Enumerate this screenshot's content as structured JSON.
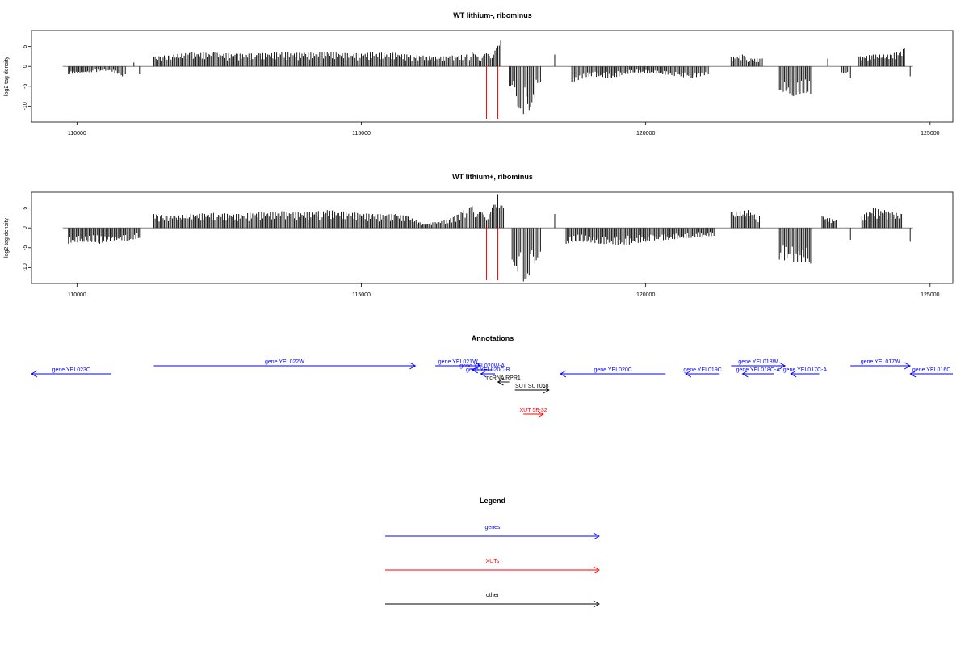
{
  "colors": {
    "genes": "#0000ff",
    "xuts": "#ff0000",
    "other": "#000000",
    "baseline": "#808080"
  },
  "chart_data": [
    {
      "type": "bar",
      "title": "WT lithium-, ribominus",
      "ylabel": "log2 tag density",
      "xlim": [
        109200,
        125400
      ],
      "ylim": [
        -14,
        9
      ],
      "x_ticks": [
        110000,
        115000,
        120000,
        125000
      ],
      "x_tick_labels": [
        "110000",
        "115000",
        "120000",
        "125000"
      ],
      "y_ticks": [
        5,
        0,
        -5,
        -10
      ],
      "y_tick_labels": [
        "5",
        "0",
        "-5",
        "-10"
      ],
      "series": [
        {
          "values": [
            [
              109850,
              -2
            ],
            [
              110300,
              -1.5
            ],
            [
              110550,
              -1
            ],
            [
              110800,
              -2.5
            ],
            [
              110850,
              -2
            ],
            [
              111000,
              1
            ],
            [
              111100,
              -2
            ],
            [
              111350,
              2.5
            ],
            [
              111700,
              3
            ],
            [
              112000,
              3.5
            ],
            [
              112400,
              3.5
            ],
            [
              112800,
              3.2
            ],
            [
              113200,
              3.3
            ],
            [
              113600,
              3.6
            ],
            [
              114000,
              3.4
            ],
            [
              114400,
              3.7
            ],
            [
              114800,
              3.3
            ],
            [
              115200,
              3.5
            ],
            [
              115600,
              3.4
            ],
            [
              115800,
              3
            ],
            [
              116350,
              2.5
            ],
            [
              116850,
              3
            ],
            [
              116950,
              3.5
            ],
            [
              117050,
              2.5
            ],
            [
              117200,
              3.3
            ],
            [
              117350,
              4
            ],
            [
              117450,
              6.5
            ],
            [
              117600,
              -5
            ],
            [
              117750,
              -10
            ],
            [
              117850,
              -12
            ],
            [
              117950,
              -11
            ],
            [
              118050,
              -8
            ],
            [
              118150,
              -4
            ],
            [
              118400,
              3
            ],
            [
              118700,
              -4
            ],
            [
              119000,
              -2.5
            ],
            [
              119400,
              -3
            ],
            [
              119800,
              -1.5
            ],
            [
              120300,
              -2
            ],
            [
              120800,
              -3
            ],
            [
              121100,
              -2
            ],
            [
              121500,
              2.5
            ],
            [
              121700,
              3
            ],
            [
              121850,
              2
            ],
            [
              122050,
              2
            ],
            [
              122350,
              -6
            ],
            [
              122600,
              -7.5
            ],
            [
              122900,
              -7
            ],
            [
              123200,
              2
            ],
            [
              123450,
              -1.5
            ],
            [
              123600,
              -3
            ],
            [
              123750,
              2.5
            ],
            [
              124000,
              3
            ],
            [
              124300,
              3
            ],
            [
              124550,
              4.5
            ],
            [
              124650,
              -2.5
            ]
          ]
        }
      ],
      "vlines": [
        117200,
        117400
      ]
    },
    {
      "type": "bar",
      "title": "WT lithium+, ribominus",
      "ylabel": "log2 tag density",
      "xlim": [
        109200,
        125400
      ],
      "ylim": [
        -14,
        9
      ],
      "x_ticks": [
        110000,
        115000,
        120000,
        125000
      ],
      "x_tick_labels": [
        "110000",
        "115000",
        "120000",
        "125000"
      ],
      "y_ticks": [
        5,
        0,
        -5,
        -10
      ],
      "y_tick_labels": [
        "5",
        "0",
        "-5",
        "-10"
      ],
      "series": [
        {
          "values": [
            [
              109850,
              -4
            ],
            [
              110100,
              -3.5
            ],
            [
              110400,
              -4
            ],
            [
              110700,
              -3
            ],
            [
              110900,
              -3.5
            ],
            [
              111100,
              -2.5
            ],
            [
              111350,
              3.5
            ],
            [
              111700,
              3
            ],
            [
              112000,
              3.5
            ],
            [
              112400,
              3.8
            ],
            [
              112800,
              3.5
            ],
            [
              113200,
              4
            ],
            [
              113600,
              4.2
            ],
            [
              114000,
              4
            ],
            [
              114400,
              4.5
            ],
            [
              114800,
              4
            ],
            [
              115200,
              3.5
            ],
            [
              115600,
              3.5
            ],
            [
              115800,
              3
            ],
            [
              116100,
              1
            ],
            [
              116500,
              2
            ],
            [
              116800,
              4.5
            ],
            [
              116950,
              5.5
            ],
            [
              117100,
              4
            ],
            [
              117250,
              3.5
            ],
            [
              117400,
              8.5
            ],
            [
              117500,
              5
            ],
            [
              117650,
              -8
            ],
            [
              117750,
              -11
            ],
            [
              117850,
              -13.5
            ],
            [
              117950,
              -12
            ],
            [
              118050,
              -9
            ],
            [
              118150,
              -6
            ],
            [
              118400,
              3.5
            ],
            [
              118600,
              -4
            ],
            [
              118900,
              -3.5
            ],
            [
              119200,
              -4
            ],
            [
              119600,
              -4.5
            ],
            [
              120000,
              -3.5
            ],
            [
              120400,
              -3
            ],
            [
              120800,
              -2.5
            ],
            [
              121200,
              -2
            ],
            [
              121500,
              4
            ],
            [
              121800,
              4.5
            ],
            [
              122000,
              3
            ],
            [
              122350,
              -8
            ],
            [
              122600,
              -8.5
            ],
            [
              122900,
              -9
            ],
            [
              123100,
              3
            ],
            [
              123350,
              2
            ],
            [
              123600,
              -3
            ],
            [
              123800,
              3
            ],
            [
              124000,
              5
            ],
            [
              124200,
              4.5
            ],
            [
              124500,
              3.5
            ],
            [
              124650,
              -3.5
            ]
          ]
        }
      ],
      "vlines": [
        117200,
        117400
      ]
    }
  ],
  "annotations": {
    "title": "Annotations",
    "xlim": [
      109200,
      125400
    ],
    "items": [
      {
        "label": "gene YEL023C",
        "start": 109200,
        "end": 110600,
        "strand": "-",
        "row": 1,
        "type": "genes"
      },
      {
        "label": "gene YEL022W",
        "start": 111350,
        "end": 115950,
        "strand": "+",
        "row": 0,
        "type": "genes"
      },
      {
        "label": "gene YEL021W",
        "start": 116300,
        "end": 117100,
        "strand": "+",
        "row": 0,
        "type": "genes"
      },
      {
        "label": "gene YEL020W-A",
        "start": 116950,
        "end": 117300,
        "strand": "-",
        "row": 0.5,
        "type": "genes"
      },
      {
        "label": "gene YEL020C-B",
        "start": 117100,
        "end": 117350,
        "strand": "-",
        "row": 1,
        "type": "genes"
      },
      {
        "label": "gene YEL020C",
        "start": 118500,
        "end": 120350,
        "strand": "-",
        "row": 1,
        "type": "genes"
      },
      {
        "label": "gene YEL019C",
        "start": 120700,
        "end": 121300,
        "strand": "-",
        "row": 1,
        "type": "genes"
      },
      {
        "label": "gene YEL018W",
        "start": 121500,
        "end": 122450,
        "strand": "+",
        "row": 0,
        "type": "genes"
      },
      {
        "label": "gene YEL018C-A",
        "start": 121700,
        "end": 122250,
        "strand": "-",
        "row": 1,
        "type": "genes"
      },
      {
        "label": "gene YEL017C-A",
        "start": 122550,
        "end": 123050,
        "strand": "-",
        "row": 1,
        "type": "genes"
      },
      {
        "label": "gene YEL017W",
        "start": 123600,
        "end": 124650,
        "strand": "+",
        "row": 0,
        "type": "genes"
      },
      {
        "label": "gene YEL016C",
        "start": 124650,
        "end": 125400,
        "strand": "-",
        "row": 1,
        "type": "genes"
      },
      {
        "label": "ncRNA RPR1",
        "start": 117400,
        "end": 117600,
        "strand": "-",
        "row": 2,
        "type": "other"
      },
      {
        "label": "SUT SUT068",
        "start": 117700,
        "end": 118300,
        "strand": "+",
        "row": 3,
        "type": "other"
      },
      {
        "label": "XUT 5F-32",
        "start": 117850,
        "end": 118200,
        "strand": "+",
        "row": 6,
        "type": "xuts"
      }
    ]
  },
  "legend": {
    "title": "Legend",
    "items": [
      {
        "label": "genes",
        "type": "genes"
      },
      {
        "label": "XUTs",
        "type": "xuts"
      },
      {
        "label": "other",
        "type": "other"
      }
    ]
  }
}
